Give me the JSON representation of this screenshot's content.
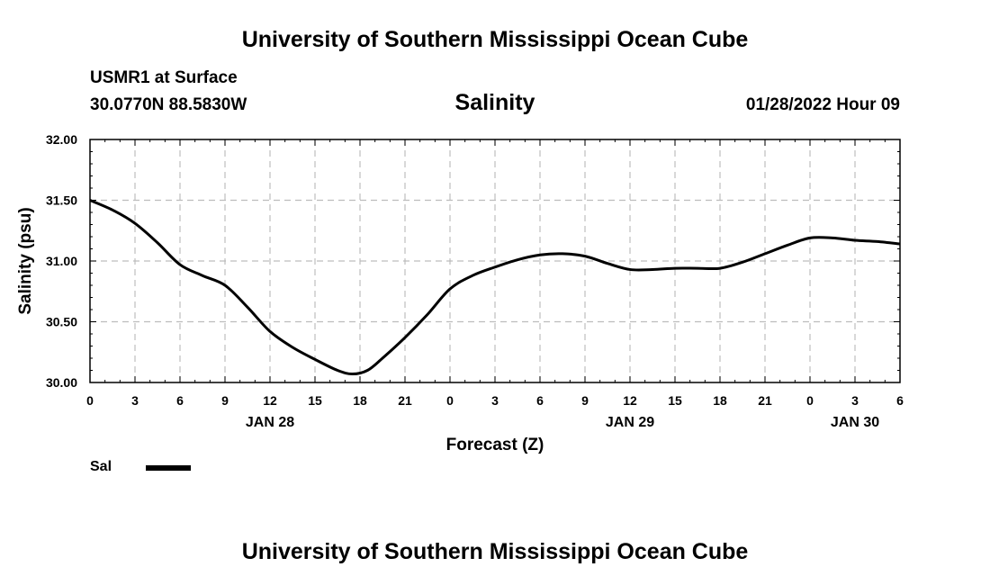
{
  "header": {
    "title": "University of Southern Mississippi Ocean Cube",
    "station": "USMR1 at Surface",
    "coords": "30.0770N  88.5830W",
    "timestamp": "01/28/2022 Hour 09"
  },
  "footer": {
    "title": "University of Southern Mississippi Ocean Cube"
  },
  "chart_data": {
    "type": "line",
    "title": "Salinity",
    "xlabel": "Forecast (Z)",
    "ylabel": "Salinity (psu)",
    "x_unit": "hours since JAN 28 00Z",
    "xlim": [
      0,
      54
    ],
    "ylim": [
      30.0,
      32.0
    ],
    "grid": true,
    "yticks": [
      {
        "value": 30.0,
        "label": "30.00"
      },
      {
        "value": 30.5,
        "label": "30.50"
      },
      {
        "value": 31.0,
        "label": "31.00"
      },
      {
        "value": 31.5,
        "label": "31.50"
      },
      {
        "value": 32.0,
        "label": "32.00"
      }
    ],
    "xticks": [
      {
        "value": 0,
        "label": "0"
      },
      {
        "value": 3,
        "label": "3"
      },
      {
        "value": 6,
        "label": "6"
      },
      {
        "value": 9,
        "label": "9"
      },
      {
        "value": 12,
        "label": "12"
      },
      {
        "value": 15,
        "label": "15"
      },
      {
        "value": 18,
        "label": "18"
      },
      {
        "value": 21,
        "label": "21"
      },
      {
        "value": 24,
        "label": "0"
      },
      {
        "value": 27,
        "label": "3"
      },
      {
        "value": 30,
        "label": "6"
      },
      {
        "value": 33,
        "label": "9"
      },
      {
        "value": 36,
        "label": "12"
      },
      {
        "value": 39,
        "label": "15"
      },
      {
        "value": 42,
        "label": "18"
      },
      {
        "value": 45,
        "label": "21"
      },
      {
        "value": 48,
        "label": "0"
      },
      {
        "value": 51,
        "label": "3"
      },
      {
        "value": 54,
        "label": "6"
      }
    ],
    "date_labels": [
      {
        "value": 12,
        "label": "JAN 28"
      },
      {
        "value": 36,
        "label": "JAN 29"
      },
      {
        "value": 51,
        "label": "JAN 30"
      }
    ],
    "series": [
      {
        "name": "Sal",
        "color": "#000000",
        "x": [
          0,
          1.5,
          3,
          4.5,
          6,
          7.5,
          9,
          10.5,
          12,
          13.5,
          15,
          16.5,
          17.5,
          18.5,
          19.5,
          21,
          22.5,
          24,
          25.5,
          27,
          28.5,
          30,
          31.5,
          33,
          34.5,
          36,
          37.5,
          39,
          40.5,
          42,
          43.5,
          45,
          46.5,
          48,
          49.5,
          51,
          52.5,
          54
        ],
        "values": [
          31.5,
          31.42,
          31.31,
          31.15,
          30.97,
          30.88,
          30.8,
          30.62,
          30.42,
          30.29,
          30.19,
          30.1,
          30.07,
          30.1,
          30.2,
          30.37,
          30.56,
          30.77,
          30.88,
          30.95,
          31.01,
          31.05,
          31.06,
          31.04,
          30.98,
          30.93,
          30.93,
          30.94,
          30.94,
          30.94,
          30.99,
          31.06,
          31.13,
          31.19,
          31.19,
          31.17,
          31.16,
          31.14
        ]
      }
    ]
  },
  "legend": {
    "label": "Sal"
  }
}
